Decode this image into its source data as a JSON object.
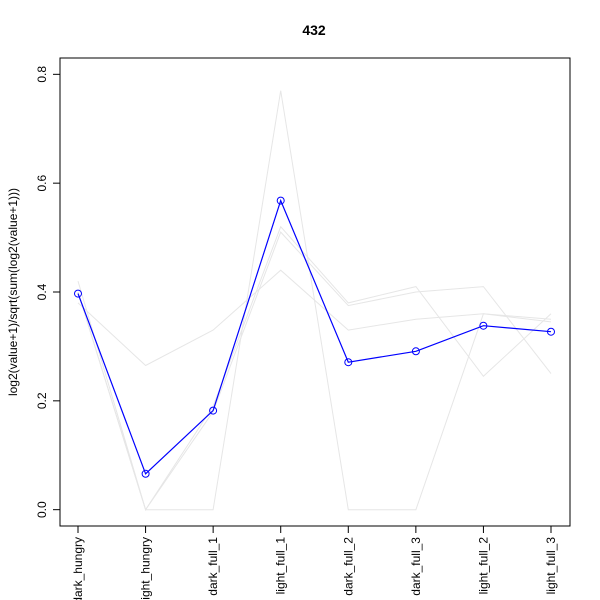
{
  "chart_data": {
    "type": "line",
    "title": "432",
    "xlabel": "",
    "ylabel": "log2(value+1)/sqrt(sum(log2(value+1)))",
    "categories": [
      "dark_hungry",
      "light_hungry",
      "dark_full_1",
      "light_full_1",
      "dark_full_2",
      "dark_full_3",
      "light_full_2",
      "light_full_3"
    ],
    "ylim": [
      -0.03,
      0.83
    ],
    "yticks": [
      0.0,
      0.2,
      0.4,
      0.6,
      0.8
    ],
    "ytick_labels": [
      "0.0",
      "0.2",
      "0.4",
      "0.6",
      "0.8"
    ],
    "grid": false,
    "legend": "none",
    "highlight": {
      "color": "#0000ff",
      "marker": "open-circle",
      "values": [
        0.397,
        0.066,
        0.182,
        0.568,
        0.271,
        0.291,
        0.338,
        0.327
      ]
    },
    "background_series": {
      "color": "#e6e6e6",
      "lines": [
        [
          0.42,
          0.0,
          0.0,
          0.77,
          0.0,
          0.0,
          0.36,
          0.35
        ],
        [
          0.38,
          0.265,
          0.33,
          0.44,
          0.33,
          0.35,
          0.36,
          0.345
        ],
        [
          0.4,
          0.0,
          0.19,
          0.52,
          0.38,
          0.41,
          0.245,
          0.36
        ],
        [
          0.4,
          0.0,
          0.18,
          0.51,
          0.375,
          0.4,
          0.41,
          0.25
        ]
      ]
    }
  }
}
